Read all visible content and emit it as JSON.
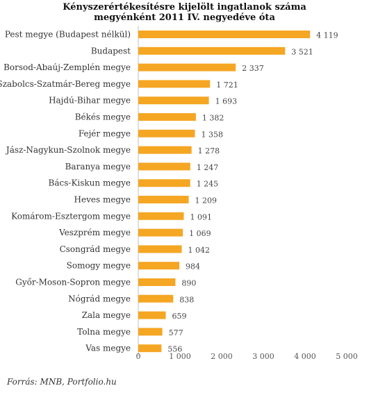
{
  "chart_data": {
    "type": "bar",
    "orientation": "horizontal",
    "title_lines": [
      "Kényszerértékesítésre  kijelölt ingatlanok száma",
      "megyénként  2011 IV. negyedéve  óta"
    ],
    "categories": [
      "Pest megye (Budapest nélkül)",
      "Budapest",
      "Borsod-Abaúj-Zemplén megye",
      "Szabolcs-Szatmár-Bereg megye",
      "Hajdú-Bihar megye",
      "Békés megye",
      "Fejér megye",
      "Jász-Nagykun-Szolnok megye",
      "Baranya megye",
      "Bács-Kiskun megye",
      "Heves megye",
      "Komárom-Esztergom megye",
      "Veszprém megye",
      "Csongrád megye",
      "Somogy megye",
      "Győr-Moson-Sopron megye",
      "Nógrád megye",
      "Zala megye",
      "Tolna megye",
      "Vas megye"
    ],
    "values": [
      4119,
      3521,
      2337,
      1721,
      1693,
      1382,
      1358,
      1278,
      1247,
      1245,
      1209,
      1091,
      1069,
      1042,
      984,
      890,
      838,
      659,
      577,
      556
    ],
    "value_labels": [
      "4 119",
      "3 521",
      "2 337",
      "1 721",
      "1 693",
      "1 382",
      "1 358",
      "1 278",
      "1 247",
      "1 245",
      "1 209",
      "1 091",
      "1 069",
      "1 042",
      "984",
      "890",
      "838",
      "659",
      "577",
      "556"
    ],
    "xlim": [
      0,
      5000
    ],
    "x_ticks": [
      0,
      1000,
      2000,
      3000,
      4000,
      5000
    ],
    "x_tick_labels": [
      "0",
      "1 000",
      "2 000",
      "3 000",
      "4 000",
      "5 000"
    ],
    "grid": false,
    "legend": "none",
    "bar_color": "#F5A623"
  },
  "source": "Forrás: MNB, Portfolio.hu"
}
